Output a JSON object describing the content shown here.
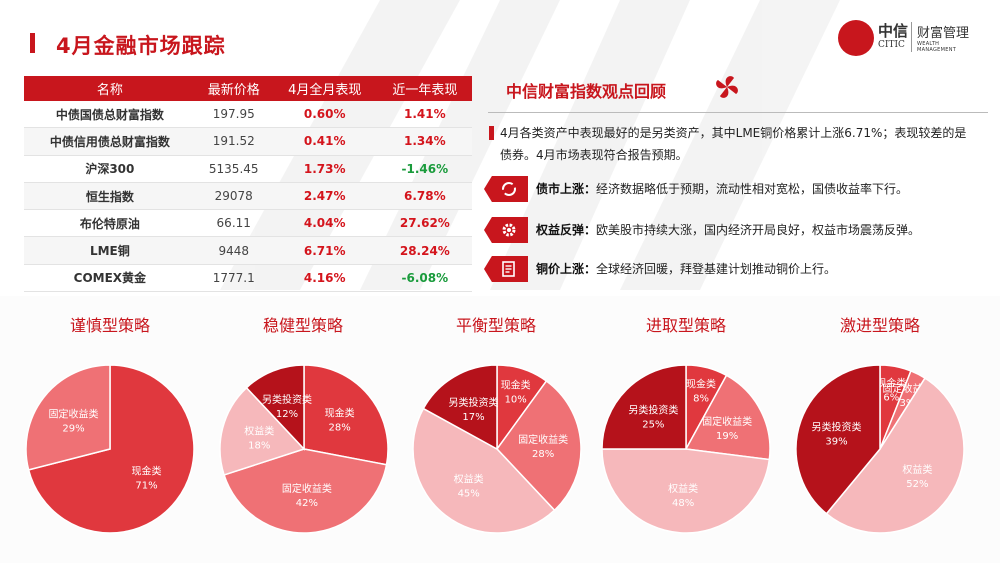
{
  "page": {
    "title": "4月金融市场跟踪"
  },
  "logo": {
    "cn": "中信",
    "en": "CITIC",
    "cn2": "财富管理",
    "en2": "WEALTH MANAGEMENT"
  },
  "market_table": {
    "headers": [
      "名称",
      "最新价格",
      "4月全月表现",
      "近一年表现"
    ],
    "rows": [
      {
        "name": "中债国债总财富指数",
        "price": "197.95",
        "month": "0.60%",
        "year": "1.41%",
        "month_dir": "up",
        "year_dir": "up"
      },
      {
        "name": "中债信用债总财富指数",
        "price": "191.52",
        "month": "0.41%",
        "year": "1.34%",
        "month_dir": "up",
        "year_dir": "up"
      },
      {
        "name": "沪深300",
        "price": "5135.45",
        "month": "1.73%",
        "year": "-1.46%",
        "month_dir": "up",
        "year_dir": "down"
      },
      {
        "name": "恒生指数",
        "price": "29078",
        "month": "2.47%",
        "year": "6.78%",
        "month_dir": "up",
        "year_dir": "up"
      },
      {
        "name": "布伦特原油",
        "price": "66.11",
        "month": "4.04%",
        "year": "27.62%",
        "month_dir": "up",
        "year_dir": "up"
      },
      {
        "name": "LME铜",
        "price": "9448",
        "month": "6.71%",
        "year": "28.24%",
        "month_dir": "up",
        "year_dir": "up"
      },
      {
        "name": "COMEX黄金",
        "price": "1777.1",
        "month": "4.16%",
        "year": "-6.08%",
        "month_dir": "up",
        "year_dir": "down"
      }
    ]
  },
  "views": {
    "title": "中信财富指数观点回顾",
    "summary": "4月各类资产中表现最好的是另类资产，其中LME铜价格累计上涨6.71%；表现较差的是债券。4月市场表现符合报告预期。",
    "points": [
      {
        "icon": "refresh-icon",
        "head": "债市上涨：",
        "text": "经济数据略低于预期，流动性相对宽松，国债收益率下行。"
      },
      {
        "icon": "gear-icon",
        "head": "权益反弹：",
        "text": "欧美股市持续大涨，国内经济开局良好，权益市场震荡反弹。"
      },
      {
        "icon": "document-icon",
        "head": "铜价上涨：",
        "text": "全球经济回暖，拜登基建计划推动铜价上行。"
      }
    ]
  },
  "colors": {
    "brand": "#c8161d",
    "cash": "#e0383e",
    "fixed": "#ef7175",
    "equity": "#f6b8bb",
    "alt": "#b5121b",
    "up": "#d4141c",
    "down": "#1a9b3c"
  },
  "chart_data": [
    {
      "type": "pie",
      "title": "谨慎型策略",
      "slices": [
        {
          "label": "现金类",
          "value": 71,
          "value_label": "71%"
        },
        {
          "label": "固定收益类",
          "value": 29,
          "value_label": "29%"
        }
      ]
    },
    {
      "type": "pie",
      "title": "稳健型策略",
      "slices": [
        {
          "label": "现金类",
          "value": 28,
          "value_label": "28%"
        },
        {
          "label": "固定收益类",
          "value": 42,
          "value_label": "42%"
        },
        {
          "label": "权益类",
          "value": 18,
          "value_label": "18%"
        },
        {
          "label": "另类投资类",
          "value": 12,
          "value_label": "12%"
        }
      ]
    },
    {
      "type": "pie",
      "title": "平衡型策略",
      "slices": [
        {
          "label": "现金类",
          "value": 10,
          "value_label": "10%"
        },
        {
          "label": "固定收益类",
          "value": 28,
          "value_label": "28%"
        },
        {
          "label": "权益类",
          "value": 45,
          "value_label": "45%"
        },
        {
          "label": "另类投资类",
          "value": 17,
          "value_label": "17%"
        }
      ]
    },
    {
      "type": "pie",
      "title": "进取型策略",
      "slices": [
        {
          "label": "现金类",
          "value": 8,
          "value_label": "8%"
        },
        {
          "label": "固定收益类",
          "value": 19,
          "value_label": "19%"
        },
        {
          "label": "权益类",
          "value": 48,
          "value_label": "48%"
        },
        {
          "label": "另类投资类",
          "value": 25,
          "value_label": "25%"
        }
      ]
    },
    {
      "type": "pie",
      "title": "激进型策略",
      "slices": [
        {
          "label": "现金类",
          "value": 6,
          "value_label": "6%"
        },
        {
          "label": "固定收益类",
          "value": 3,
          "value_label": "3%"
        },
        {
          "label": "权益类",
          "value": 52,
          "value_label": "52%"
        },
        {
          "label": "另类投资类",
          "value": 39,
          "value_label": "39%"
        }
      ]
    }
  ]
}
